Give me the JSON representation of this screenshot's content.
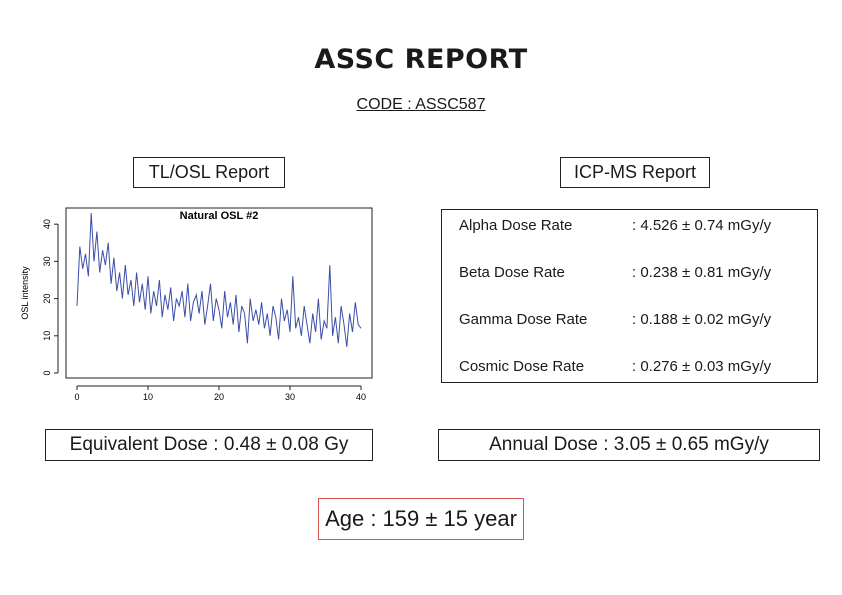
{
  "report": {
    "title": "ASSC REPORT",
    "code": "CODE : ASSC587"
  },
  "tl_osl": {
    "label": "TL/OSL Report",
    "equivalent_dose": "Equivalent Dose : 0.48 ± 0.08 Gy"
  },
  "icp_ms": {
    "label": "ICP-MS Report",
    "rates": [
      {
        "name": "Alpha Dose Rate",
        "value": ": 4.526 ± 0.74 mGy/y"
      },
      {
        "name": "Beta Dose Rate",
        "value": ": 0.238 ± 0.81 mGy/y"
      },
      {
        "name": "Gamma Dose Rate",
        "value": ": 0.188 ± 0.02 mGy/y"
      },
      {
        "name": "Cosmic Dose Rate",
        "value": ": 0.276 ± 0.03 mGy/y"
      }
    ],
    "annual_dose": "Annual Dose : 3.05 ± 0.65 mGy/y"
  },
  "age": "Age : 159 ± 15 year",
  "colors": {
    "line": "#3b4ea8",
    "age_border": "#d9534f"
  },
  "chart_data": {
    "type": "line",
    "title": "Natural OSL #2",
    "xlabel": "",
    "ylabel": "OSL intensity",
    "xlim": [
      0,
      40
    ],
    "ylim": [
      0,
      43
    ],
    "xticks": [
      0,
      10,
      20,
      30,
      40
    ],
    "yticks": [
      0,
      10,
      20,
      30,
      40
    ],
    "grid": false,
    "series": [
      {
        "x": [
          0.0,
          0.4,
          0.8,
          1.2,
          1.6,
          2.0,
          2.4,
          2.8,
          3.2,
          3.6,
          4.0,
          4.4,
          4.8,
          5.2,
          5.6,
          6.0,
          6.4,
          6.8,
          7.2,
          7.6,
          8.0,
          8.4,
          8.8,
          9.2,
          9.6,
          10.0,
          10.4,
          10.8,
          11.2,
          11.6,
          12.0,
          12.4,
          12.8,
          13.2,
          13.6,
          14.0,
          14.4,
          14.8,
          15.2,
          15.6,
          16.0,
          16.4,
          16.8,
          17.2,
          17.6,
          18.0,
          18.4,
          18.8,
          19.2,
          19.6,
          20.0,
          20.4,
          20.8,
          21.2,
          21.6,
          22.0,
          22.4,
          22.8,
          23.2,
          23.6,
          24.0,
          24.4,
          24.8,
          25.2,
          25.6,
          26.0,
          26.4,
          26.8,
          27.2,
          27.6,
          28.0,
          28.4,
          28.8,
          29.2,
          29.6,
          30.0,
          30.4,
          30.8,
          31.2,
          31.6,
          32.0,
          32.4,
          32.8,
          33.2,
          33.6,
          34.0,
          34.4,
          34.8,
          35.2,
          35.6,
          36.0,
          36.4,
          36.8,
          37.2,
          37.6,
          38.0,
          38.4,
          38.8,
          39.2,
          39.6,
          40.0
        ],
        "values": [
          18,
          34,
          28,
          32,
          26,
          43,
          30,
          38,
          27,
          33,
          29,
          35,
          24,
          31,
          22,
          27,
          20,
          29,
          21,
          25,
          18,
          27,
          19,
          24,
          17,
          26,
          16,
          22,
          18,
          25,
          15,
          21,
          17,
          23,
          14,
          20,
          18,
          22,
          15,
          24,
          14,
          19,
          21,
          16,
          22,
          13,
          18,
          24,
          14,
          20,
          17,
          12,
          22,
          15,
          19,
          13,
          21,
          11,
          18,
          16,
          8,
          20,
          14,
          17,
          13,
          19,
          12,
          16,
          10,
          18,
          15,
          9,
          20,
          14,
          17,
          11,
          26,
          12,
          15,
          10,
          18,
          13,
          8,
          16,
          11,
          20,
          9,
          14,
          12,
          29,
          10,
          15,
          8,
          18,
          13,
          7,
          16,
          11,
          19,
          13,
          12
        ]
      }
    ]
  }
}
